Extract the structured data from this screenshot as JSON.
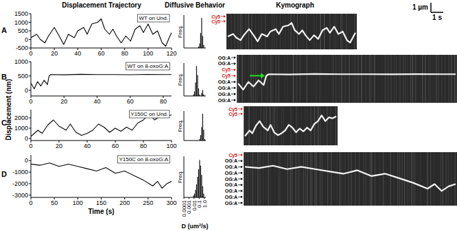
{
  "figure": {
    "headers": [
      "Displacement Trajectory",
      "Diffusive Behavior",
      "Kymograph"
    ],
    "panel_letters": [
      "A",
      "B",
      "C",
      "D"
    ],
    "ylabel": "Displacement (nm)",
    "scale_bar": {
      "length": "1 µm",
      "time": "1 s"
    }
  },
  "chart_data": [
    {
      "type": "line",
      "label": "WT on Und.",
      "x": [
        0,
        5,
        8,
        12,
        15,
        20,
        25,
        28,
        32,
        37,
        40,
        45,
        48,
        52,
        57,
        60,
        63,
        67,
        70,
        73,
        77,
        81,
        85,
        89,
        93,
        96,
        100,
        104,
        108,
        112,
        115,
        118,
        120
      ],
      "values": [
        100,
        300,
        0,
        -200,
        200,
        700,
        100,
        -300,
        300,
        100,
        500,
        700,
        300,
        900,
        1000,
        1200,
        600,
        300,
        600,
        200,
        -200,
        200,
        -100,
        600,
        800,
        400,
        900,
        300,
        500,
        -200,
        -400,
        100,
        400
      ],
      "xlim": [
        0,
        120
      ],
      "ylim": [
        -500,
        1500
      ],
      "xticks": [
        0,
        20,
        40,
        60,
        80,
        100,
        120
      ],
      "yticks": [
        -500,
        0,
        500,
        1000,
        1500
      ]
    },
    {
      "type": "histogram",
      "bins": [
        0.004,
        0.0063,
        0.01,
        0.0158,
        0.0251,
        0.0398,
        0.0631,
        0.1,
        0.158,
        0.251,
        0.398,
        0.631,
        1.0,
        1.585
      ],
      "counts": [
        0,
        0,
        0,
        0,
        0,
        0,
        1,
        3,
        10,
        20,
        8,
        2,
        0
      ],
      "xlim": [
        0.0001,
        2
      ],
      "ylim": [
        0,
        22
      ],
      "log": "x",
      "ylabel": "Freq.",
      "tick_labels": false
    },
    {
      "type": "line",
      "label": "WT on 8-oxoG:A",
      "x": [
        0,
        2,
        4,
        6,
        8,
        10,
        11,
        12,
        20,
        30,
        40,
        50,
        60,
        70,
        80,
        85
      ],
      "values": [
        250,
        50,
        300,
        150,
        350,
        200,
        500,
        550,
        540,
        560,
        550,
        550,
        545,
        555,
        550,
        550
      ],
      "xlim": [
        0,
        85
      ],
      "ylim": [
        -200,
        1000
      ],
      "xticks": [
        0,
        20,
        40,
        60,
        80
      ],
      "yticks": [
        0,
        500,
        1000
      ]
    },
    {
      "type": "histogram",
      "bins": [
        0.004,
        0.0063,
        0.01,
        0.0158,
        0.0251,
        0.0398,
        0.0631,
        0.1,
        0.158,
        0.251,
        0.398,
        0.631,
        1.0,
        1.585
      ],
      "counts": [
        0,
        1,
        3,
        9,
        20,
        14,
        5,
        1,
        0,
        2,
        4,
        1,
        0
      ],
      "xlim": [
        0.0001,
        2
      ],
      "ylim": [
        0,
        22
      ],
      "log": "x",
      "ylabel": "Freq.",
      "tick_labels": false
    },
    {
      "type": "line",
      "label": "Y150C on Und.",
      "x": [
        0,
        5,
        8,
        12,
        16,
        20,
        25,
        28,
        32,
        36,
        40,
        44,
        48,
        52,
        56,
        60,
        64,
        68,
        72,
        76,
        80,
        84,
        88,
        92,
        96,
        100
      ],
      "values": [
        200,
        800,
        500,
        1300,
        1800,
        1200,
        800,
        1400,
        600,
        300,
        500,
        800,
        1400,
        1100,
        600,
        1000,
        700,
        1100,
        800,
        1500,
        1800,
        2400,
        1800,
        2200,
        2100,
        2300
      ],
      "xlim": [
        0,
        100
      ],
      "ylim": [
        -200,
        2800
      ],
      "xticks": [
        0,
        20,
        40,
        60,
        80,
        100
      ],
      "yticks": [
        0,
        1000,
        2000
      ]
    },
    {
      "type": "histogram",
      "bins": [
        0.004,
        0.0063,
        0.01,
        0.0158,
        0.0251,
        0.0398,
        0.0631,
        0.1,
        0.158,
        0.251,
        0.398,
        0.631,
        1.0,
        1.585
      ],
      "counts": [
        0,
        0,
        0,
        0,
        0,
        0,
        0,
        1,
        4,
        10,
        20,
        8,
        1
      ],
      "xlim": [
        0.0001,
        2
      ],
      "ylim": [
        0,
        22
      ],
      "log": "x",
      "ylabel": "Freq.",
      "tick_labels": false
    },
    {
      "type": "line",
      "label": "Y150C on 8-oxoG:A",
      "x": [
        0,
        20,
        40,
        60,
        80,
        100,
        120,
        140,
        160,
        180,
        200,
        220,
        240,
        260,
        270,
        280,
        290,
        300
      ],
      "values": [
        -300,
        -400,
        -200,
        -500,
        -300,
        -500,
        -700,
        -900,
        -600,
        -1100,
        -900,
        -1300,
        -1700,
        -2200,
        -1800,
        -2400,
        -2000,
        -1800
      ],
      "xlim": [
        0,
        300
      ],
      "ylim": [
        -3200,
        500
      ],
      "xticks": [
        0,
        50,
        100,
        150,
        200,
        250,
        300
      ],
      "yticks": [
        -3000,
        -2000,
        -1000,
        0
      ],
      "xlabel": "Time (s)"
    },
    {
      "type": "histogram",
      "bins": [
        0.004,
        0.0063,
        0.01,
        0.0158,
        0.0251,
        0.0398,
        0.0631,
        0.1,
        0.158,
        0.251,
        0.398,
        0.631,
        1.0,
        1.585
      ],
      "counts": [
        0,
        1,
        2,
        4,
        7,
        11,
        15,
        20,
        17,
        12,
        6,
        2,
        0
      ],
      "xlim": [
        0.0001,
        2
      ],
      "ylim": [
        0,
        22
      ],
      "log": "x",
      "ylabel": "Freq.",
      "xlabel": "D (um²/s)",
      "tick_labels": "x",
      "xticks": [
        0.0001,
        0.001,
        0.01,
        0.1,
        {
          "value": 1,
          "label": "1.0"
        }
      ]
    }
  ],
  "kymographs": [
    {
      "labels": [
        {
          "text": "Cy5",
          "color": "#d42020"
        },
        {
          "text": "Cy5",
          "color": "#d42020"
        }
      ]
    },
    {
      "labels": [
        {
          "text": "OG:A",
          "color": "#000000"
        },
        {
          "text": "OG:A",
          "color": "#000000"
        },
        {
          "text": "Cy5",
          "color": "#d42020"
        },
        {
          "text": "Cy5",
          "color": "#d42020"
        },
        {
          "text": "OG:A",
          "color": "#000000"
        },
        {
          "text": "OG:A",
          "color": "#000000"
        },
        {
          "text": "OG:A",
          "color": "#000000"
        },
        {
          "text": "OG:A",
          "color": "#000000"
        }
      ]
    },
    {
      "labels": [
        {
          "text": "Cy5",
          "color": "#d42020"
        },
        {
          "text": "Cy5",
          "color": "#d42020"
        }
      ]
    },
    {
      "labels": [
        {
          "text": "Cy5",
          "color": "#d42020"
        },
        {
          "text": "OG:A",
          "color": "#000000"
        },
        {
          "text": "OG:A",
          "color": "#000000"
        },
        {
          "text": "OG:A",
          "color": "#000000"
        },
        {
          "text": "OG:A",
          "color": "#000000"
        },
        {
          "text": "OG:A",
          "color": "#000000"
        },
        {
          "text": "OG:A",
          "color": "#000000"
        },
        {
          "text": "OG:A",
          "color": "#000000"
        },
        {
          "text": "OG:A",
          "color": "#000000"
        }
      ]
    }
  ]
}
